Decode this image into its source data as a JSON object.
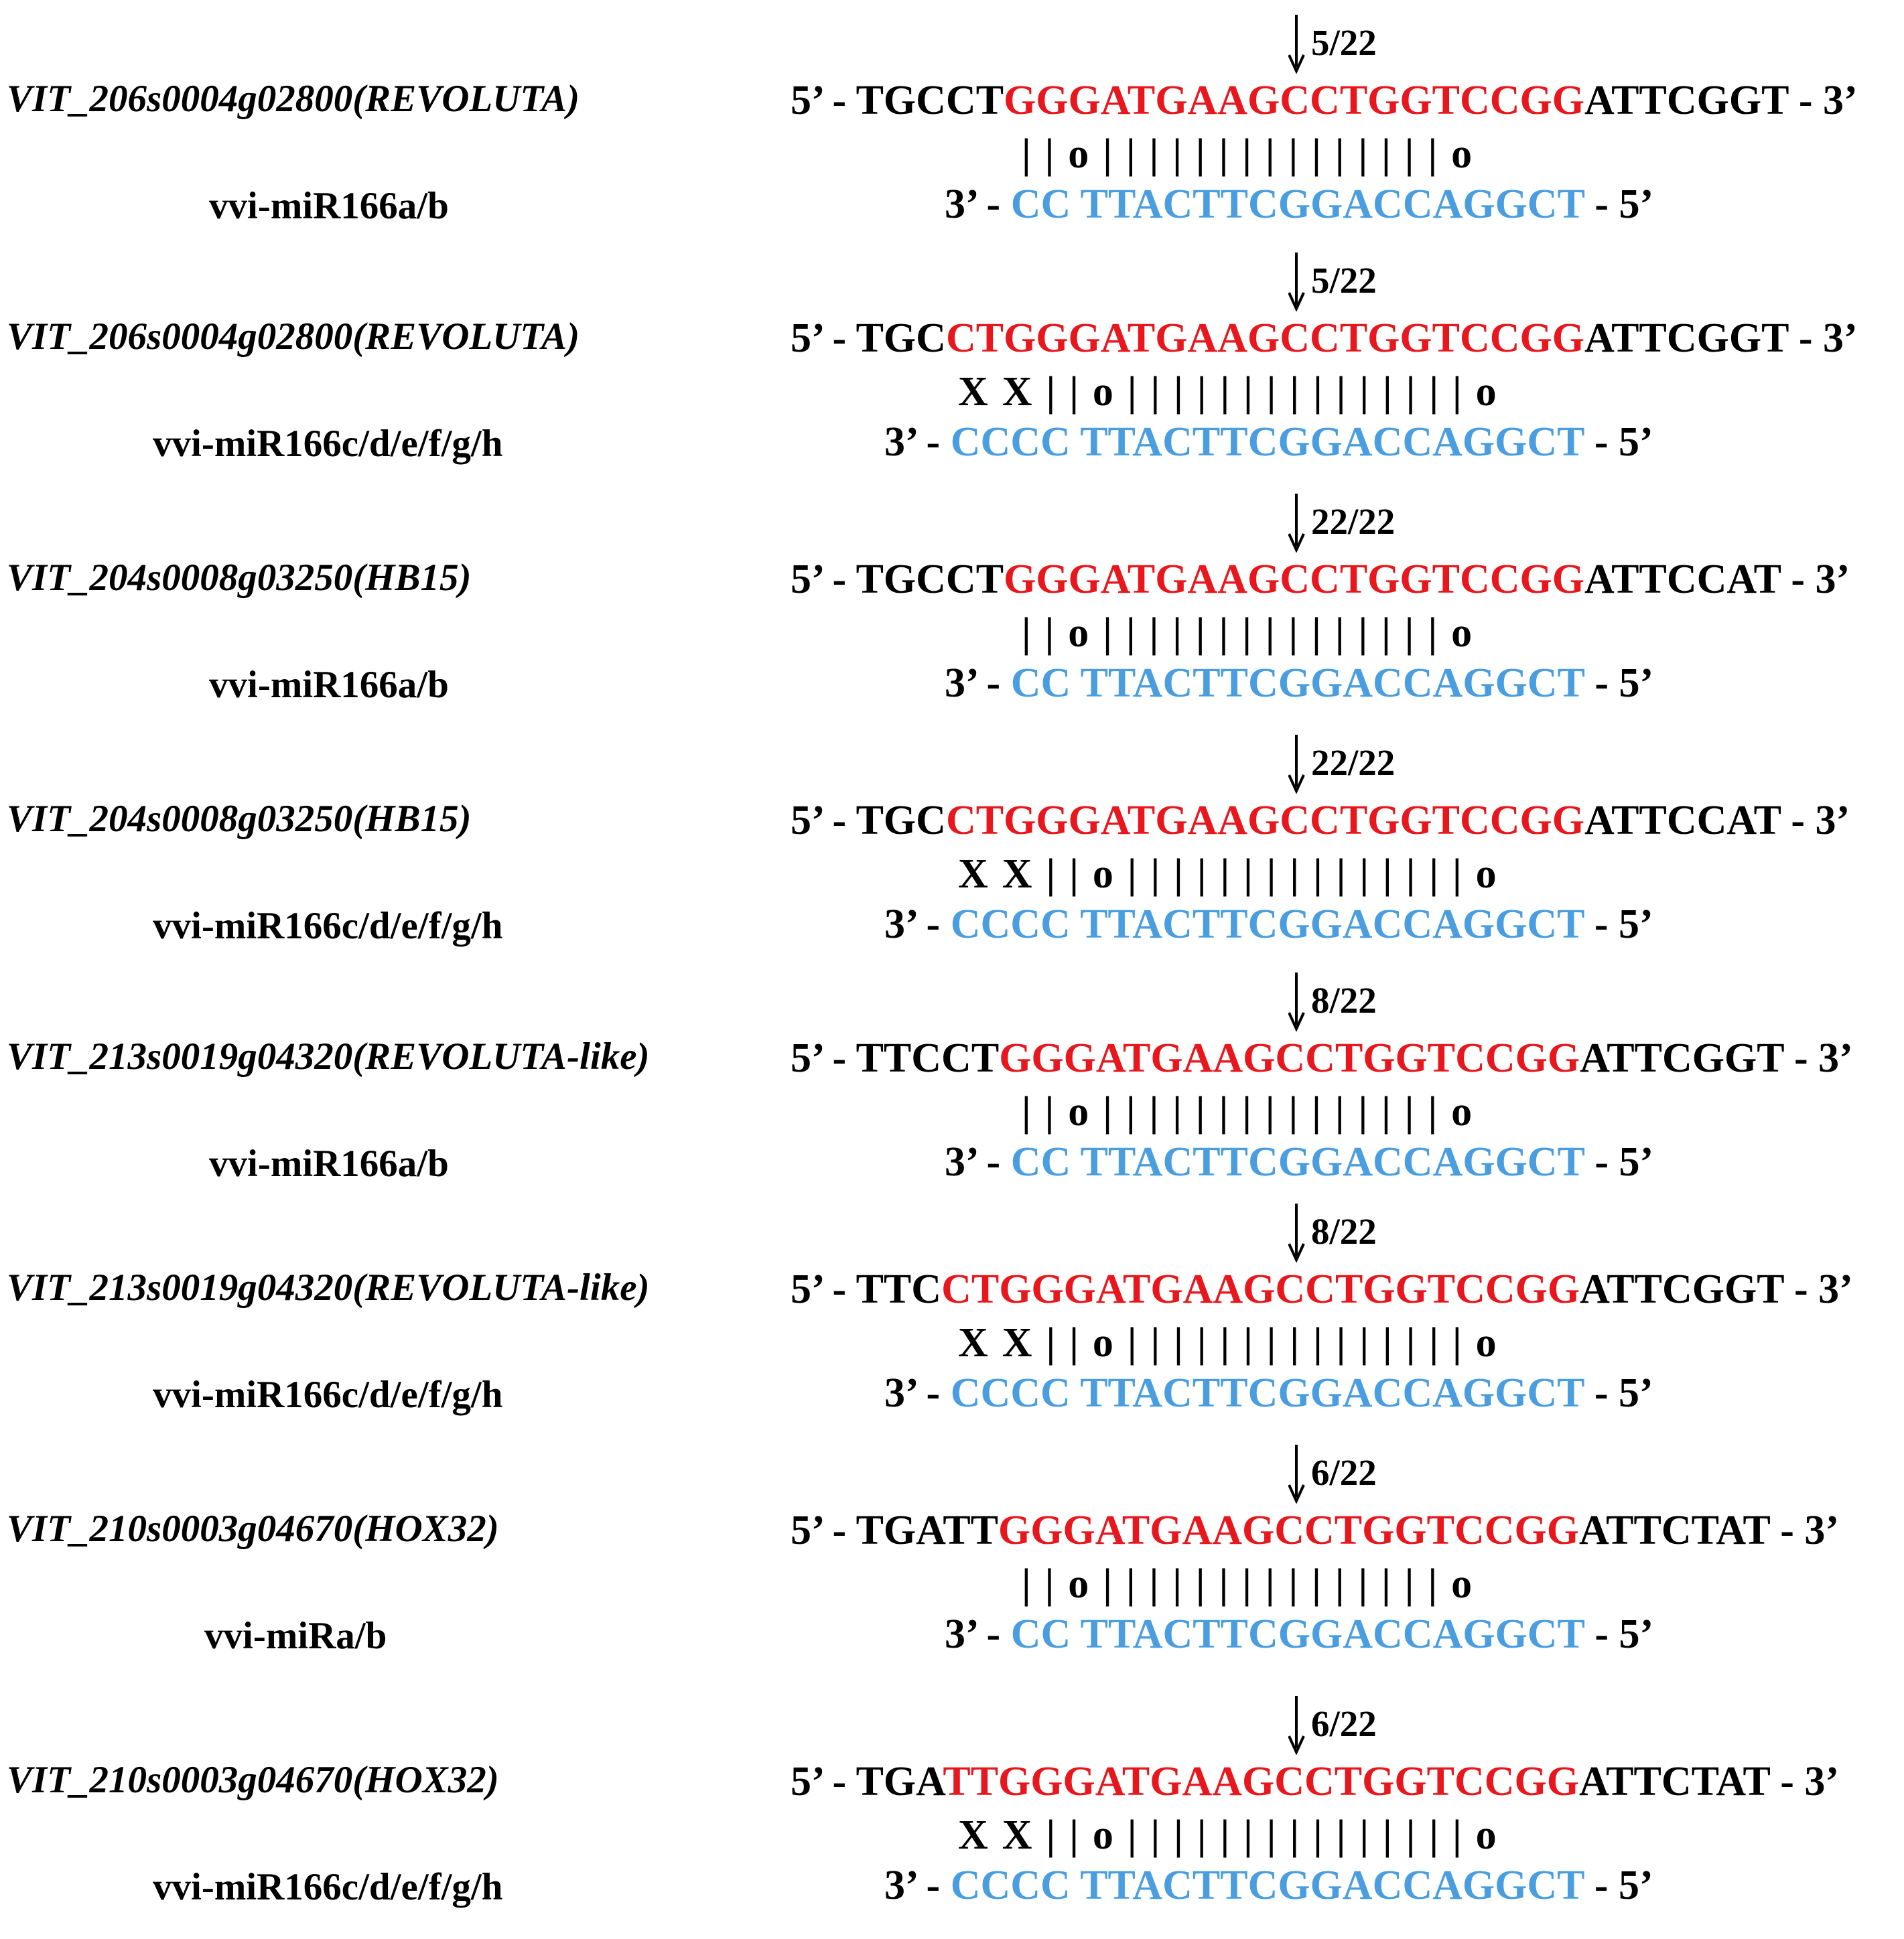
{
  "colors": {
    "target_site": "#e8171d",
    "mirna": "#4a9ee0",
    "flank": "#000000"
  },
  "pairs": [
    {
      "gene": "VIT_206s0004g02800(REVOLUTA)",
      "mirna": "vvi-miR166a/b",
      "cleavage": "5/22",
      "target": {
        "p5": "5’ - ",
        "left": "TGCCT",
        "site": "GGGATGAAGCCTGGTCCGG",
        "right": "ATTCGGT",
        "p3": " - 3’"
      },
      "pairing": "||o|||||||||||||||o",
      "mir": {
        "p3": "3’ - ",
        "a": "CC",
        "b": "TTACTTCGGACCAGGCT",
        "p5": " - 5’"
      }
    },
    {
      "gene": "VIT_206s0004g02800(REVOLUTA)",
      "mirna": "vvi-miR166c/d/e/f/g/h",
      "cleavage": "5/22",
      "target": {
        "p5": "5’ - ",
        "left": "TGC",
        "site": "CTGGGATGAAGCCTGGTCCGG",
        "right": "ATTCGGT",
        "p3": " - 3’"
      },
      "pairing": "XX||o|||||||||||||||o",
      "mir": {
        "p3": "3’ - ",
        "a": "CCCC",
        "b": "TTACTTCGGACCAGGCT",
        "p5": " - 5’"
      }
    },
    {
      "gene": "VIT_204s0008g03250(HB15)",
      "mirna": "vvi-miR166a/b",
      "cleavage": "22/22",
      "target": {
        "p5": "5’ - ",
        "left": "TGCCT",
        "site": "GGGATGAAGCCTGGTCCGG",
        "right": "ATTCCAT",
        "p3": " - 3’"
      },
      "pairing": "||o|||||||||||||||o",
      "mir": {
        "p3": "3’ - ",
        "a": "CC",
        "b": "TTACTTCGGACCAGGCT",
        "p5": " - 5’"
      }
    },
    {
      "gene": "VIT_204s0008g03250(HB15)",
      "mirna": "vvi-miR166c/d/e/f/g/h",
      "cleavage": "22/22",
      "target": {
        "p5": "5’ - ",
        "left": "TGC",
        "site": "CTGGGATGAAGCCTGGTCCGG",
        "right": "ATTCCAT",
        "p3": " - 3’"
      },
      "pairing": "XX||o|||||||||||||||o",
      "mir": {
        "p3": "3’ - ",
        "a": "CCCC",
        "b": "TTACTTCGGACCAGGCT",
        "p5": " - 5’"
      }
    },
    {
      "gene": "VIT_213s0019g04320(REVOLUTA-like)",
      "mirna": "vvi-miR166a/b",
      "cleavage": "8/22",
      "target": {
        "p5": "5’ - ",
        "left": "TTCCT",
        "site": "GGGATGAAGCCTGGTCCGG",
        "right": "ATTCGGT",
        "p3": " - 3’"
      },
      "pairing": "||o|||||||||||||||o",
      "mir": {
        "p3": "3’ - ",
        "a": "CC",
        "b": "TTACTTCGGACCAGGCT",
        "p5": " - 5’"
      }
    },
    {
      "gene": "VIT_213s0019g04320(REVOLUTA-like)",
      "mirna": "vvi-miR166c/d/e/f/g/h",
      "cleavage": "8/22",
      "target": {
        "p5": "5’ - ",
        "left": "TTC",
        "site": "CTGGGATGAAGCCTGGTCCGG",
        "right": "ATTCGGT",
        "p3": " - 3’"
      },
      "pairing": "XX||o|||||||||||||||o",
      "mir": {
        "p3": "3’ - ",
        "a": "CCCC",
        "b": "TTACTTCGGACCAGGCT",
        "p5": " - 5’"
      }
    },
    {
      "gene": "VIT_210s0003g04670(HOX32)",
      "mirna": "vvi-miRa/b",
      "cleavage": "6/22",
      "target": {
        "p5": "5’ - ",
        "left": "TGATT",
        "site": "GGGATGAAGCCTGGTCCGG",
        "right": "ATTCTAT",
        "p3": " - 3’"
      },
      "pairing": "||o|||||||||||||||o",
      "mir": {
        "p3": "3’ - ",
        "a": "CC",
        "b": "TTACTTCGGACCAGGCT",
        "p5": " - 5’"
      }
    },
    {
      "gene": "VIT_210s0003g04670(HOX32)",
      "mirna": "vvi-miR166c/d/e/f/g/h",
      "cleavage": "6/22",
      "target": {
        "p5": "5’ - ",
        "left": "TGA",
        "site": "TTGGGATGAAGCCTGGTCCGG",
        "right": "ATTCTAT",
        "p3": " - 3’"
      },
      "pairing": "XX||o|||||||||||||||o",
      "mir": {
        "p3": "3’ - ",
        "a": "CCCC",
        "b": "TTACTTCGGACCAGGCT",
        "p5": " - 5’"
      }
    }
  ]
}
